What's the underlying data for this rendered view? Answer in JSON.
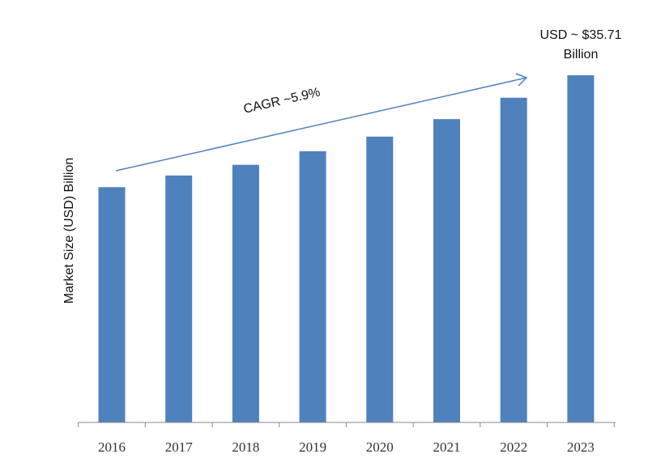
{
  "chart_data": {
    "type": "bar",
    "title": "",
    "xlabel": "",
    "ylabel": "Market Size (USD) Billion",
    "categories": [
      "2016",
      "2017",
      "2018",
      "2019",
      "2020",
      "2021",
      "2022",
      "2023"
    ],
    "values": [
      24.2,
      25.4,
      26.5,
      27.9,
      29.4,
      31.2,
      33.4,
      35.71
    ],
    "ylim": [
      0,
      35.71
    ],
    "grid": false,
    "bar_color": "#4F81BD",
    "annotations": {
      "cagr": "CAGR ~5.9%",
      "final_value_line1": "USD ~ $35.71",
      "final_value_line2": "Billion"
    }
  }
}
